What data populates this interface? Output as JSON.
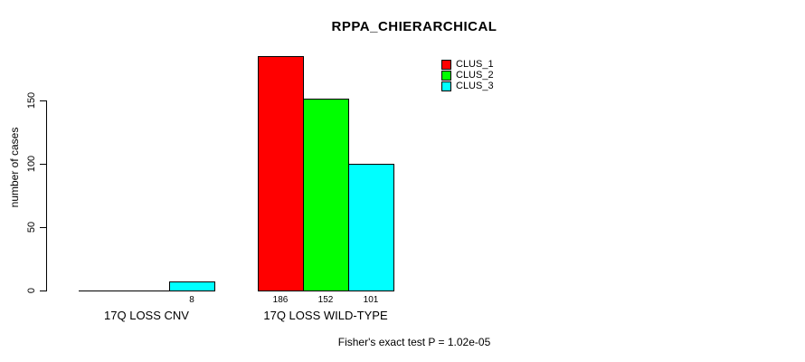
{
  "chart_data": {
    "type": "bar",
    "title": "RPPA_CHIERARCHICAL",
    "ylabel": "number of cases",
    "xlabel": "",
    "yticks": [
      0,
      50,
      100,
      150
    ],
    "ylim": [
      0,
      190
    ],
    "grid": false,
    "legend_position": "top-right",
    "categories": [
      "17Q LOSS CNV",
      "17Q LOSS WILD-TYPE"
    ],
    "series": [
      {
        "name": "CLUS_1",
        "color": "#ff0000",
        "values": [
          0,
          186
        ]
      },
      {
        "name": "CLUS_2",
        "color": "#00ff00",
        "values": [
          0,
          152
        ]
      },
      {
        "name": "CLUS_3",
        "color": "#00ffff",
        "values": [
          8,
          101
        ]
      }
    ],
    "bar_value_labels": [
      [
        "",
        "",
        "8"
      ],
      [
        "186",
        "152",
        "101"
      ]
    ],
    "footnote": "Fisher's exact test P = 1.02e-05"
  },
  "colors": {
    "background": "#ffffff",
    "axis": "#000000",
    "text": "#000000"
  }
}
